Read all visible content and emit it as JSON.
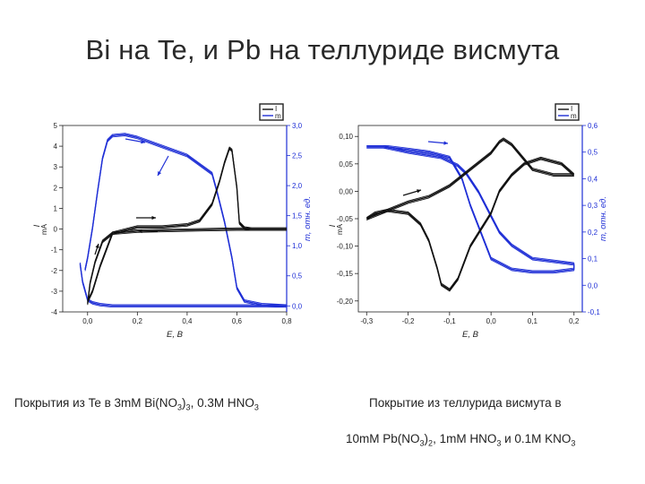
{
  "slide": {
    "title": "Bi на Te, и Pb на теллуриде висмута"
  },
  "captions": {
    "left": {
      "p1": "Покрытия из Te в 3mM Bi(NO",
      "s1": "3",
      "p2": ")",
      "s2": "3",
      "p3": ", 0.3M HNO",
      "s3": "3"
    },
    "right_line1": "Покрытие из теллурида висмута в",
    "right_line2": {
      "p1": "10mM Pb(NO",
      "s1": "3",
      "p2": ")",
      "s2": "2",
      "p3": ", 1mM HNO",
      "s3": "3",
      "p4": " и 0.1M KNO",
      "s4": "3"
    }
  },
  "chart_data": [
    {
      "type": "line",
      "x_label": "E, В",
      "y_left_label": "I",
      "y_left_unit": "mA",
      "y_right_label": "m, отн. ед.",
      "legend": [
        "I",
        "m"
      ],
      "xlim": [
        -0.1,
        0.8
      ],
      "ylim_left": [
        -4,
        5
      ],
      "ylim_right": [
        -0.1,
        3.0
      ],
      "x_ticks": [
        "0,0",
        "0,2",
        "0,4",
        "0,6",
        "0,8"
      ],
      "x_tick_values": [
        0.0,
        0.2,
        0.4,
        0.6,
        0.8
      ],
      "y_left_ticks": [
        "5",
        "4",
        "3",
        "2",
        "1",
        "0",
        "-1",
        "-2",
        "-3",
        "-4"
      ],
      "y_left_tick_values": [
        5,
        4,
        3,
        2,
        1,
        0,
        -1,
        -2,
        -3,
        -4
      ],
      "y_right_ticks": [
        "3,0",
        "2,5",
        "2,0",
        "1,5",
        "1,0",
        "0,5",
        "0,0"
      ],
      "y_right_tick_values": [
        3.0,
        2.5,
        2.0,
        1.5,
        1.0,
        0.5,
        0.0
      ],
      "colors": {
        "current": "#111111",
        "mass": "#1f2fd6",
        "right_axis": "#1f2fd6"
      },
      "current_series": [
        {
          "name": "I",
          "x": [
            0.0,
            0.02,
            0.05,
            0.1,
            0.2,
            0.3,
            0.4,
            0.45,
            0.5,
            0.53,
            0.55,
            0.57,
            0.58,
            0.6,
            0.61,
            0.63,
            0.66,
            0.7,
            0.8
          ],
          "y": [
            -3.5,
            -3.0,
            -1.8,
            -0.2,
            0.1,
            0.1,
            0.2,
            0.4,
            1.2,
            2.3,
            3.2,
            3.9,
            3.8,
            2.0,
            0.3,
            0.05,
            0.0,
            0.0,
            0.0
          ]
        },
        {
          "name": "I",
          "x": [
            0.8,
            0.6,
            0.4,
            0.2,
            0.1,
            0.06,
            0.03,
            0.01,
            0.0
          ],
          "y": [
            0.0,
            0.0,
            -0.05,
            -0.1,
            -0.2,
            -0.6,
            -1.6,
            -2.6,
            -3.6
          ]
        }
      ],
      "mass_series": [
        {
          "name": "m",
          "x": [
            -0.03,
            -0.02,
            0.0,
            0.02,
            0.05,
            0.1,
            0.15,
            0.2,
            0.3,
            0.4,
            0.5,
            0.55,
            0.58,
            0.6,
            0.62,
            0.65,
            0.7,
            0.8
          ],
          "y": [
            0.7,
            0.4,
            0.1,
            0.05,
            0.02,
            0.0,
            0.0,
            0.0,
            0.0,
            0.0,
            0.0,
            0.0,
            0.0,
            0.0,
            0.0,
            0.0,
            0.0,
            0.0
          ]
        },
        {
          "name": "m",
          "x": [
            0.8,
            0.7,
            0.63,
            0.6,
            0.58,
            0.55,
            0.52,
            0.5,
            0.45,
            0.4,
            0.3,
            0.2,
            0.15,
            0.1,
            0.08,
            0.06,
            0.04,
            0.02,
            0.0,
            -0.01
          ],
          "y": [
            0.0,
            0.02,
            0.08,
            0.3,
            0.8,
            1.4,
            1.9,
            2.2,
            2.35,
            2.5,
            2.65,
            2.8,
            2.85,
            2.83,
            2.75,
            2.45,
            1.9,
            1.3,
            0.8,
            0.6
          ]
        }
      ]
    },
    {
      "type": "line",
      "x_label": "E, В",
      "y_left_label": "I",
      "y_left_unit": "mA",
      "y_right_label": "m, отн. ед.",
      "legend": [
        "I",
        "m"
      ],
      "xlim": [
        -0.32,
        0.22
      ],
      "ylim_left": [
        -0.22,
        0.12
      ],
      "ylim_right": [
        -0.1,
        0.6
      ],
      "x_ticks": [
        "-0,3",
        "-0,2",
        "-0,1",
        "0,0",
        "0,1",
        "0,2"
      ],
      "x_tick_values": [
        -0.3,
        -0.2,
        -0.1,
        0.0,
        0.1,
        0.2
      ],
      "y_left_ticks": [
        "0,10",
        "0,05",
        "0,00",
        "-0,05",
        "-0,10",
        "-0,15",
        "-0,20"
      ],
      "y_left_tick_values": [
        0.1,
        0.05,
        0.0,
        -0.05,
        -0.1,
        -0.15,
        -0.2
      ],
      "y_right_ticks": [
        "0,6",
        "0,5",
        "0,4",
        "0,3",
        "0,2",
        "0,1",
        "0,0",
        "-0,1"
      ],
      "y_right_tick_values": [
        0.6,
        0.5,
        0.4,
        0.3,
        0.2,
        0.1,
        0.0,
        -0.1
      ],
      "colors": {
        "current": "#111111",
        "mass": "#1f2fd6",
        "right_axis": "#1f2fd6"
      },
      "current_series": [
        {
          "name": "I",
          "x": [
            -0.3,
            -0.28,
            -0.25,
            -0.2,
            -0.17,
            -0.15,
            -0.13,
            -0.12,
            -0.1,
            -0.08,
            -0.05,
            0.0,
            0.02,
            0.05,
            0.08,
            0.12,
            0.17,
            0.2
          ],
          "y": [
            -0.05,
            -0.04,
            -0.035,
            -0.04,
            -0.06,
            -0.09,
            -0.14,
            -0.17,
            -0.18,
            -0.16,
            -0.1,
            -0.04,
            0.0,
            0.03,
            0.05,
            0.06,
            0.05,
            0.03
          ]
        },
        {
          "name": "I",
          "x": [
            0.2,
            0.15,
            0.1,
            0.05,
            0.03,
            0.02,
            0.0,
            -0.05,
            -0.1,
            -0.15,
            -0.2,
            -0.25,
            -0.3
          ],
          "y": [
            0.03,
            0.03,
            0.04,
            0.085,
            0.095,
            0.09,
            0.07,
            0.04,
            0.01,
            -0.01,
            -0.02,
            -0.035,
            -0.05
          ]
        }
      ],
      "mass_series": [
        {
          "name": "m",
          "x": [
            -0.3,
            -0.25,
            -0.2,
            -0.15,
            -0.1,
            -0.07,
            -0.05,
            -0.02,
            0.0,
            0.05,
            0.1,
            0.15,
            0.2,
            0.2
          ],
          "y": [
            0.52,
            0.52,
            0.51,
            0.5,
            0.48,
            0.4,
            0.3,
            0.18,
            0.1,
            0.06,
            0.05,
            0.05,
            0.06,
            0.08
          ]
        },
        {
          "name": "m",
          "x": [
            0.2,
            0.15,
            0.1,
            0.05,
            0.02,
            0.0,
            -0.03,
            -0.06,
            -0.08,
            -0.12,
            -0.2,
            -0.26,
            -0.29,
            -0.3
          ],
          "y": [
            0.08,
            0.09,
            0.1,
            0.15,
            0.2,
            0.26,
            0.35,
            0.42,
            0.45,
            0.48,
            0.5,
            0.52,
            0.52,
            0.52
          ]
        }
      ]
    }
  ]
}
